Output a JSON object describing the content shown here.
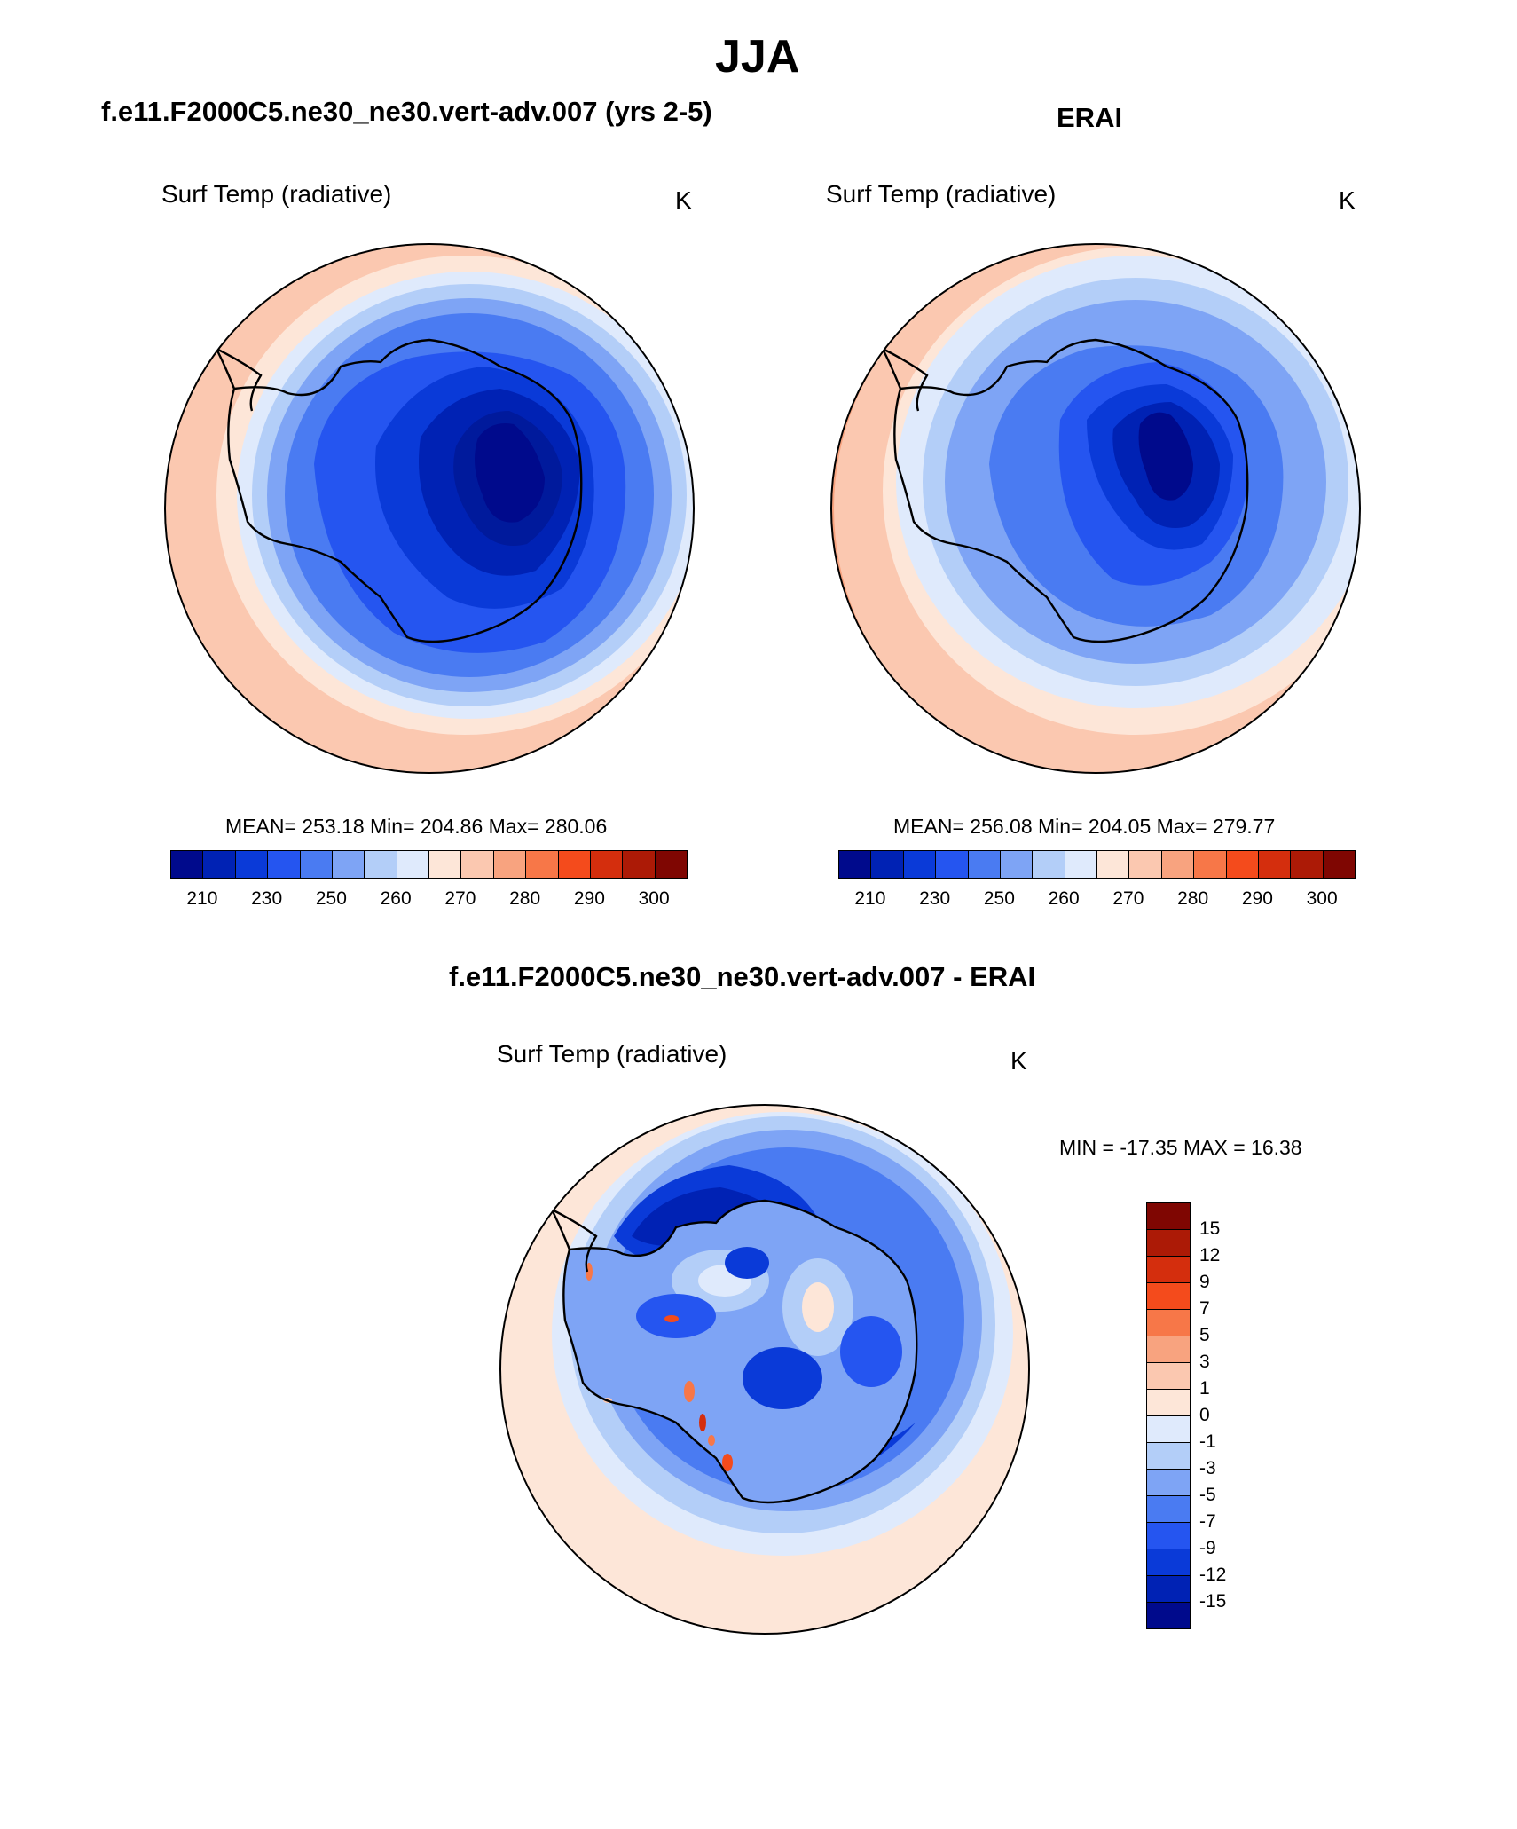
{
  "main_title": "JJA",
  "panels": [
    {
      "title": "f.e11.F2000C5.ne30_ne30.vert-adv.007 (yrs 2-5)",
      "variable": "Surf Temp (radiative)",
      "units": "K",
      "stats": "MEAN= 253.18  Min= 204.86  Max= 280.06"
    },
    {
      "title": "ERAI",
      "variable": "Surf Temp (radiative)",
      "units": "K",
      "stats": "MEAN= 256.08  Min= 204.05  Max= 279.77"
    }
  ],
  "abs_colorbar": {
    "colors": [
      "#000a8c",
      "#0022b4",
      "#0a3ad8",
      "#2555f0",
      "#4a7bf2",
      "#7ea4f5",
      "#b3cef8",
      "#dfeafc",
      "#fde6d8",
      "#fbc8b0",
      "#f8a37f",
      "#f77748",
      "#f44b1c",
      "#d42e0d",
      "#ac1a06",
      "#7f0602"
    ],
    "tick_labels": [
      "210",
      "230",
      "250",
      "260",
      "270",
      "280",
      "290",
      "300"
    ]
  },
  "diff_panel": {
    "title": "f.e11.F2000C5.ne30_ne30.vert-adv.007 - ERAI",
    "variable": "Surf Temp (radiative)",
    "units": "K",
    "stats": "MIN = -17.35 MAX =  16.38",
    "colors_top_to_bottom": [
      "#7f0602",
      "#ac1a06",
      "#d42e0d",
      "#f44b1c",
      "#f77748",
      "#f8a37f",
      "#fbc8b0",
      "#fde6d8",
      "#dfeafc",
      "#b3cef8",
      "#7ea4f5",
      "#4a7bf2",
      "#2555f0",
      "#0a3ad8",
      "#0022b4",
      "#000a8c"
    ],
    "tick_labels_top_to_bottom": [
      "15",
      "12",
      "9",
      "7",
      "5",
      "3",
      "1",
      "0",
      "-1",
      "-3",
      "-5",
      "-7",
      "-9",
      "-12",
      "-15"
    ]
  },
  "chart_data": [
    {
      "type": "heatmap",
      "projection": "south-polar-stereographic",
      "title": "f.e11.F2000C5.ne30_ne30.vert-adv.007 (yrs 2-5)",
      "variable": "Surf Temp (radiative)",
      "units": "K",
      "mean": 253.18,
      "min": 204.86,
      "max": 280.06,
      "contour_levels": [
        210,
        220,
        230,
        240,
        250,
        255,
        260,
        265,
        270,
        275,
        280,
        285,
        290,
        295,
        300
      ]
    },
    {
      "type": "heatmap",
      "projection": "south-polar-stereographic",
      "title": "ERAI",
      "variable": "Surf Temp (radiative)",
      "units": "K",
      "mean": 256.08,
      "min": 204.05,
      "max": 279.77,
      "contour_levels": [
        210,
        220,
        230,
        240,
        250,
        255,
        260,
        265,
        270,
        275,
        280,
        285,
        290,
        295,
        300
      ]
    },
    {
      "type": "heatmap",
      "projection": "south-polar-stereographic",
      "title": "f.e11.F2000C5.ne30_ne30.vert-adv.007 - ERAI",
      "variable": "Surf Temp (radiative)",
      "units": "K",
      "min": -17.35,
      "max": 16.38,
      "contour_levels": [
        -15,
        -12,
        -9,
        -7,
        -5,
        -3,
        -1,
        0,
        1,
        3,
        5,
        7,
        9,
        12,
        15
      ]
    }
  ]
}
